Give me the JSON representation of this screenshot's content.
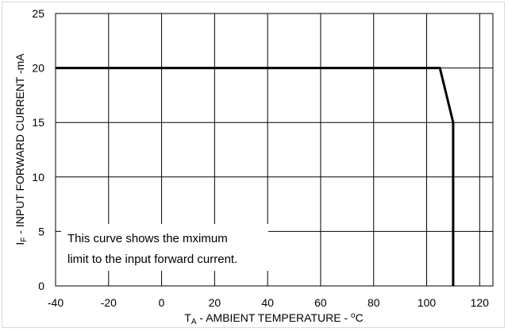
{
  "chart_data": {
    "type": "line",
    "title": "",
    "xlabel": {
      "main": "T",
      "sub": "A",
      "rest": " - AMBIENT TEMPERATURE - ",
      "unit_sup": "o",
      "unit": "C"
    },
    "ylabel": {
      "main": "I",
      "sub": "F",
      "rest": " - INPUT FORWARD CURRENT -mA"
    },
    "xlim": [
      -40,
      125
    ],
    "ylim": [
      0,
      25
    ],
    "x_ticks": [
      -40,
      -20,
      0,
      20,
      40,
      60,
      80,
      100,
      120
    ],
    "y_ticks": [
      0,
      5,
      10,
      15,
      20,
      25
    ],
    "x_gridlines": [
      -40,
      -20,
      0,
      20,
      40,
      60,
      80,
      100,
      120
    ],
    "y_gridlines": [
      0,
      5,
      10,
      15,
      20,
      25
    ],
    "grid": true,
    "series": [
      {
        "x": [
          -40,
          105,
          110,
          110
        ],
        "y": [
          20,
          20,
          15,
          0
        ]
      }
    ],
    "annotation": {
      "lines": [
        "This curve shows the mximum",
        "limit to the input forward current."
      ]
    }
  }
}
